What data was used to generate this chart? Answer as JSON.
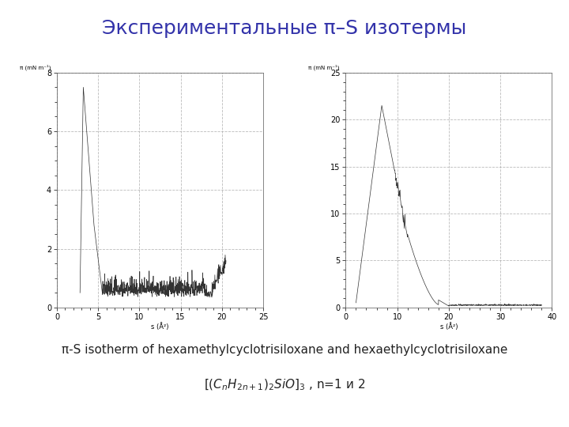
{
  "title": "Экспериментальные π–S изотермы",
  "title_fontsize": 18,
  "title_color": "#3333aa",
  "caption_line1": "π-S isotherm of hexamethylcyclotrisiloxane and hexaethylcyclotrisiloxane",
  "caption_fontsize": 11,
  "plot1": {
    "xlim": [
      0,
      25
    ],
    "ylim": [
      0,
      8
    ],
    "xticks": [
      0,
      5,
      10,
      15,
      20,
      25
    ],
    "yticks": [
      0,
      2,
      4,
      6,
      8
    ],
    "xlabel": "s (Å²)",
    "ylabel": "π (mN m⁻¹)"
  },
  "plot2": {
    "xlim": [
      0,
      40
    ],
    "ylim": [
      0,
      25
    ],
    "xticks": [
      0,
      10,
      20,
      30,
      40
    ],
    "yticks": [
      0,
      5,
      10,
      15,
      20,
      25
    ],
    "xlabel": "s (Å²)",
    "ylabel": "π (mN m⁻¹)"
  },
  "line_color": "#333333",
  "background": "#ffffff",
  "grid_color": "#aaaaaa",
  "grid_style": "--",
  "tick_label_fontsize": 7,
  "axis_label_fontsize": 6,
  "ylabel_fontsize": 5
}
